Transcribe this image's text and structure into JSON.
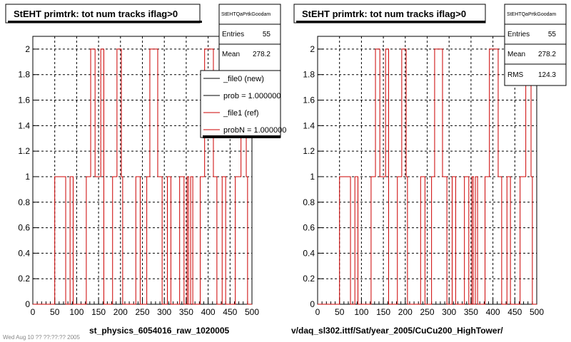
{
  "footer": {
    "timestamp": "Wed Aug 10 ?? ??:??:?? 2005"
  },
  "chart_data": [
    {
      "type": "histogram",
      "title": "StEHT primtrk: tot num tracks iflag>0",
      "xlabel": "st_physics_6054016_raw_1020005",
      "ylabel": "",
      "xlim": [
        0,
        500
      ],
      "ylim": [
        0,
        2.1
      ],
      "grid": true,
      "x_ticks": [
        "0",
        "50",
        "100",
        "150",
        "200",
        "250",
        "300",
        "350",
        "400",
        "450",
        "500"
      ],
      "y_ticks": [
        "0",
        "0.2",
        "0.4",
        "0.6",
        "0.8",
        "1",
        "1.2",
        "1.4",
        "1.6",
        "1.8",
        "2"
      ],
      "stats": {
        "name": "StEHTQaPrtkGoodam",
        "entries_label": "Entries",
        "entries": "55",
        "mean_label": "Mean",
        "mean": "278.2"
      },
      "legend": {
        "entries": [
          "_file0 (new)",
          "prob = 1.000000",
          "_file1 (ref)",
          "probN = 1.000000"
        ],
        "colors": [
          "#000000",
          "#000000",
          "#cc0000",
          "#cc0000"
        ]
      },
      "series": [
        {
          "color": "#cc0000",
          "bins": [
            [
              0,
              0
            ],
            [
              50,
              1
            ],
            [
              75,
              0
            ],
            [
              85,
              1
            ],
            [
              92,
              0
            ],
            [
              122,
              1
            ],
            [
              132,
              2
            ],
            [
              142,
              1
            ],
            [
              155,
              2
            ],
            [
              162,
              0
            ],
            [
              182,
              1
            ],
            [
              192,
              2
            ],
            [
              202,
              1
            ],
            [
              205,
              0
            ],
            [
              235,
              1
            ],
            [
              245,
              0
            ],
            [
              260,
              1
            ],
            [
              267,
              2
            ],
            [
              285,
              1
            ],
            [
              295,
              0
            ],
            [
              307,
              1
            ],
            [
              315,
              0
            ],
            [
              335,
              1
            ],
            [
              345,
              0
            ],
            [
              352,
              1
            ],
            [
              355,
              0
            ],
            [
              360,
              1
            ],
            [
              365,
              0
            ],
            [
              382,
              1
            ],
            [
              392,
              2
            ],
            [
              412,
              1
            ],
            [
              420,
              0
            ],
            [
              432,
              1
            ],
            [
              440,
              0
            ],
            [
              462,
              1
            ],
            [
              475,
              2
            ],
            [
              487,
              1
            ],
            [
              490,
              0
            ],
            [
              500,
              0
            ]
          ]
        }
      ]
    },
    {
      "type": "histogram",
      "title": "StEHT primtrk: tot num tracks iflag>0",
      "xlabel": "v/daq_sl302.ittf/Sat/year_2005/CuCu200_HighTower/",
      "ylabel": "",
      "xlim": [
        0,
        500
      ],
      "ylim": [
        0,
        2.1
      ],
      "grid": true,
      "x_ticks": [
        "0",
        "50",
        "100",
        "150",
        "200",
        "250",
        "300",
        "350",
        "400",
        "450",
        "500"
      ],
      "y_ticks": [
        "0",
        "0.2",
        "0.4",
        "0.6",
        "0.8",
        "1",
        "1.2",
        "1.4",
        "1.6",
        "1.8",
        "2"
      ],
      "stats": {
        "name": "StEHTQaPrtkGoodam",
        "entries_label": "Entries",
        "entries": "55",
        "mean_label": "Mean",
        "mean": "278.2",
        "rms_label": "RMS",
        "rms": "124.3"
      },
      "series": [
        {
          "color": "#cc0000",
          "bins": [
            [
              0,
              0
            ],
            [
              50,
              1
            ],
            [
              75,
              0
            ],
            [
              85,
              1
            ],
            [
              92,
              0
            ],
            [
              122,
              1
            ],
            [
              132,
              2
            ],
            [
              142,
              1
            ],
            [
              155,
              2
            ],
            [
              162,
              0
            ],
            [
              182,
              1
            ],
            [
              192,
              2
            ],
            [
              202,
              1
            ],
            [
              205,
              0
            ],
            [
              235,
              1
            ],
            [
              245,
              0
            ],
            [
              260,
              1
            ],
            [
              267,
              2
            ],
            [
              285,
              1
            ],
            [
              295,
              0
            ],
            [
              307,
              1
            ],
            [
              315,
              0
            ],
            [
              335,
              1
            ],
            [
              345,
              0
            ],
            [
              352,
              1
            ],
            [
              355,
              0
            ],
            [
              360,
              1
            ],
            [
              365,
              0
            ],
            [
              382,
              1
            ],
            [
              392,
              2
            ],
            [
              412,
              1
            ],
            [
              420,
              0
            ],
            [
              432,
              1
            ],
            [
              440,
              0
            ],
            [
              462,
              1
            ],
            [
              475,
              2
            ],
            [
              487,
              1
            ],
            [
              490,
              0
            ],
            [
              500,
              0
            ]
          ]
        }
      ]
    }
  ]
}
